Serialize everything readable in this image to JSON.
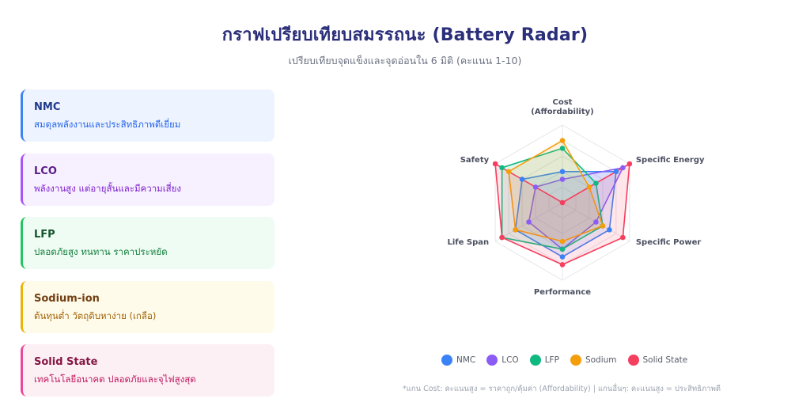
{
  "header": {
    "title": "กราฟเปรียบเทียบสมรรถนะ (Battery Radar)",
    "subtitle": "เปรียบเทียบจุดแข็งและจุดอ่อนใน 6 มิติ (คะแนน 1-10)"
  },
  "cards": [
    {
      "name": "NMC",
      "desc": "สมดุลพลังงานและประสิทธิภาพดีเยี่ยม",
      "bg": "#eef4ff",
      "border": "#3b82f6",
      "title_color": "#1e3a8a",
      "desc_color": "#2563eb"
    },
    {
      "name": "LCO",
      "desc": "พลังงานสูง แต่อายุสั้นและมีความเสี่ยง",
      "bg": "#f7f0ff",
      "border": "#a855f7",
      "title_color": "#581c87",
      "desc_color": "#7e22ce"
    },
    {
      "name": "LFP",
      "desc": "ปลอดภัยสูง ทนทาน ราคาประหยัด",
      "bg": "#eefcf3",
      "border": "#22c55e",
      "title_color": "#14532d",
      "desc_color": "#15803d"
    },
    {
      "name": "Sodium-ion",
      "desc": "ต้นทุนต่ำ วัตถุดิบหาง่าย (เกลือ)",
      "bg": "#fffbea",
      "border": "#eab308",
      "title_color": "#713f12",
      "desc_color": "#a16207"
    },
    {
      "name": "Solid State",
      "desc": "เทคโนโลยีอนาคต ปลอดภัยและจุไฟสูงสุด",
      "bg": "#fdf0f5",
      "border": "#ec4899",
      "title_color": "#831843",
      "desc_color": "#be185d"
    }
  ],
  "chart_data": {
    "type": "radar",
    "axes": [
      "Cost (Affordability)",
      "Specific Energy",
      "Specific Power",
      "Performance",
      "Life Span",
      "Safety"
    ],
    "axis_label_lines": [
      [
        "Cost",
        "(Affordability)"
      ],
      [
        "Specific Energy"
      ],
      [
        "Specific Power"
      ],
      [
        "Performance"
      ],
      [
        "Life Span"
      ],
      [
        "Safety"
      ]
    ],
    "range": [
      0,
      10
    ],
    "grid_levels": 5,
    "series": [
      {
        "name": "NMC",
        "color": "#3b82f6",
        "values": [
          4,
          8,
          7,
          7,
          7,
          6
        ]
      },
      {
        "name": "LCO",
        "color": "#8b5cf6",
        "values": [
          3,
          9,
          5,
          6,
          5,
          4
        ]
      },
      {
        "name": "LFP",
        "color": "#10b981",
        "values": [
          7,
          5,
          6,
          6,
          9,
          9
        ]
      },
      {
        "name": "Sodium",
        "color": "#f59e0b",
        "values": [
          8,
          4,
          6,
          5,
          7,
          8
        ]
      },
      {
        "name": "Solid State",
        "color": "#f43f5e",
        "values": [
          0,
          10,
          9,
          8,
          9,
          10
        ]
      }
    ],
    "legend_position": "bottom"
  },
  "footnote": "*แกน Cost: คะแนนสูง = ราคาถูก/คุ้มค่า (Affordability) | แกนอื่นๆ: คะแนนสูง = ประสิทธิภาพดี"
}
